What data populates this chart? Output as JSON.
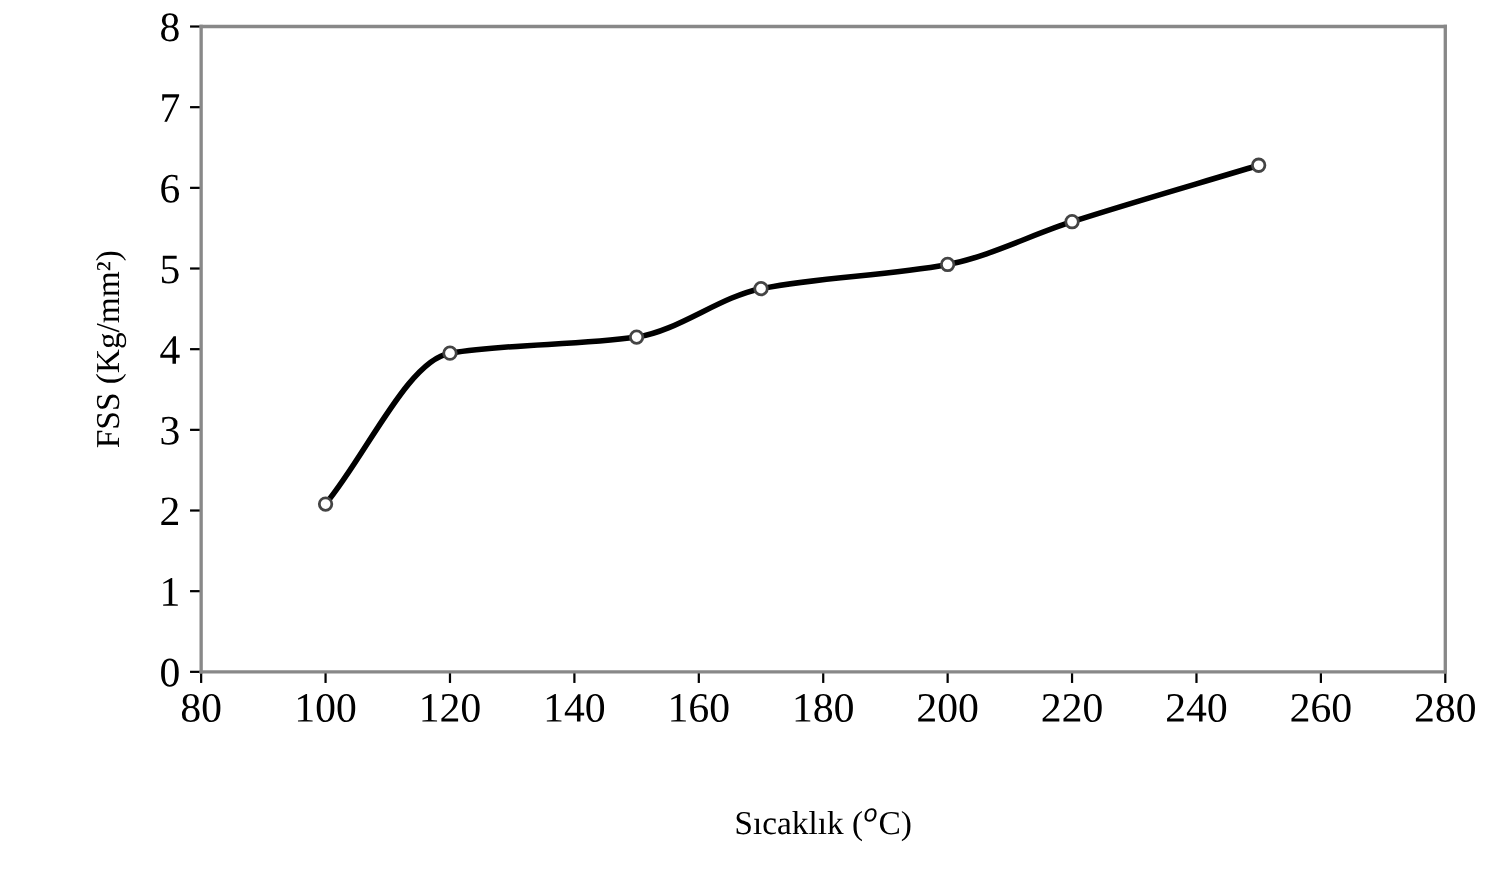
{
  "chart_data": {
    "type": "line",
    "xlabel": "Sıcaklık ($^{o}$C)",
    "ylabel": "FSS (Kg/mm²)",
    "x": [
      100,
      120,
      150,
      170,
      200,
      220,
      250
    ],
    "series": [
      {
        "color": "#000000",
        "values": [
          2.08,
          3.95,
          4.15,
          4.75,
          5.05,
          5.58,
          6.28
        ]
      }
    ],
    "xlim": [
      80,
      280
    ],
    "xticks": [
      80,
      100,
      120,
      140,
      160,
      180,
      200,
      220,
      240,
      260,
      280
    ],
    "ylim": [
      0,
      8
    ],
    "yticks": [
      0,
      1,
      2,
      3,
      4,
      5,
      6,
      7,
      8
    ],
    "marker": "circle",
    "line_style": "solid",
    "grid": false,
    "legend": false
  }
}
